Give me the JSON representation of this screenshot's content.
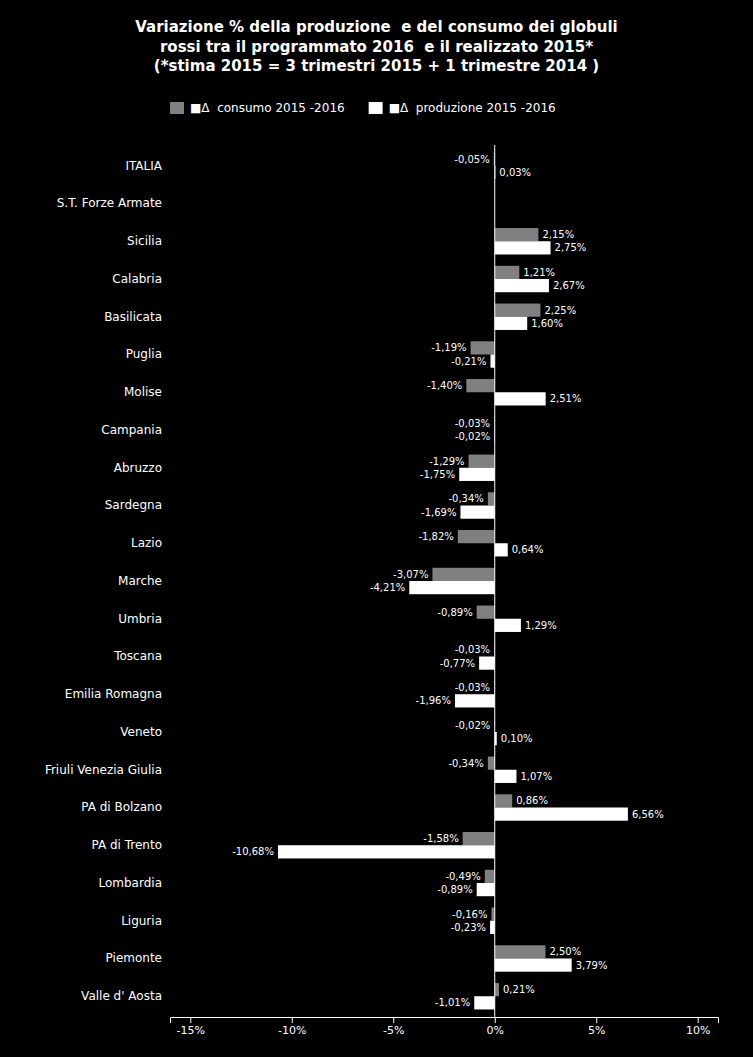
{
  "chart_data": {
    "type": "bar",
    "orientation": "horizontal",
    "title": "Variazione % della produzione  e del consumo dei globuli\nrossi tra il programmato 2016  e il realizzato 2015*\n(*stima 2015 = 3 trimestri 2015 + 1 trimestre 2014 )",
    "categories": [
      "ITALIA",
      "S.T. Forze Armate",
      "Sicilia",
      "Calabria",
      "Basilicata",
      "Puglia",
      "Molise",
      "Campania",
      "Abruzzo",
      "Sardegna",
      "Lazio",
      "Marche",
      "Umbria",
      "Toscana",
      "Emilia Romagna",
      "Veneto",
      "Friuli Venezia Giulia",
      "PA di Bolzano",
      "PA di Trento",
      "Lombardia",
      "Liguria",
      "Piemonte",
      "Valle d' Aosta"
    ],
    "series": [
      {
        "name": "■Δ  consumo 2015 -2016",
        "color": "#808080",
        "values": [
          -0.05,
          0.0,
          2.15,
          1.21,
          2.25,
          -1.19,
          -1.4,
          -0.03,
          -1.29,
          -0.34,
          -1.82,
          -3.07,
          -0.89,
          -0.03,
          -0.03,
          -0.02,
          -0.34,
          0.86,
          -1.58,
          -0.49,
          -0.16,
          2.5,
          0.21
        ],
        "value_labels": [
          "-0,05%",
          null,
          "2,15%",
          "1,21%",
          "2,25%",
          "-1,19%",
          "-1,40%",
          "-0,03%",
          "-1,29%",
          "-0,34%",
          "-1,82%",
          "-3,07%",
          "-0,89%",
          "-0,03%",
          "-0,03%",
          "-0,02%",
          "-0,34%",
          "0,86%",
          "-1,58%",
          "-0,49%",
          "-0,16%",
          "2,50%",
          "0,21%"
        ]
      },
      {
        "name": "■Δ  produzione 2015 -2016",
        "color": "#ffffff",
        "values": [
          0.03,
          0.0,
          2.75,
          2.67,
          1.6,
          -0.21,
          2.51,
          -0.02,
          -1.75,
          -1.69,
          0.64,
          -4.21,
          1.29,
          -0.77,
          -1.96,
          0.1,
          1.07,
          6.56,
          -10.68,
          -0.89,
          -0.23,
          3.79,
          -1.01
        ],
        "value_labels": [
          "0,03%",
          null,
          "2,75%",
          "2,67%",
          "1,60%",
          "-0,21%",
          "2,51%",
          "-0,02%",
          "-1,75%",
          "-1,69%",
          "0,64%",
          "-4,21%",
          "1,29%",
          "-0,77%",
          "-1,96%",
          "0,10%",
          "1,07%",
          "6,56%",
          "-10,68%",
          "-0,89%",
          "-0,23%",
          "3,79%",
          "-1,01%"
        ]
      }
    ],
    "xlim": [
      -16,
      11
    ],
    "xticks": [
      {
        "value": -15,
        "label": "-15%"
      },
      {
        "value": -10,
        "label": "-10%"
      },
      {
        "value": -5,
        "label": "-5%"
      },
      {
        "value": 0,
        "label": "0%"
      },
      {
        "value": 5,
        "label": "5%"
      },
      {
        "value": 10,
        "label": "10%"
      }
    ],
    "grid": false,
    "legend": "upper left",
    "data_labels": true
  }
}
